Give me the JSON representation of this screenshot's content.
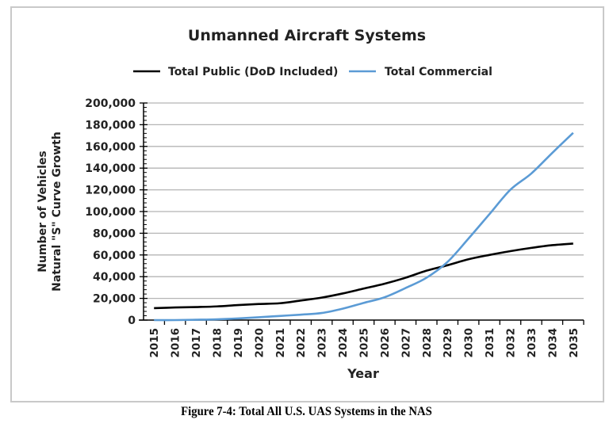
{
  "chart_data": {
    "type": "line",
    "title": "Unmanned Aircraft Systems",
    "xlabel": "Year",
    "ylabel_lines": [
      "Number of Vehicles",
      "Natural \"S\" Curve Growth"
    ],
    "ylim": [
      0,
      200000
    ],
    "yticks": [
      0,
      20000,
      40000,
      60000,
      80000,
      100000,
      120000,
      140000,
      160000,
      180000,
      200000
    ],
    "ytick_labels": [
      "0",
      "20,000",
      "40,000",
      "60,000",
      "80,000",
      "100,000",
      "120,000",
      "140,000",
      "160,000",
      "180,000",
      "200,000"
    ],
    "grid": true,
    "legend_position": "top",
    "categories": [
      "2015",
      "2016",
      "2017",
      "2018",
      "2019",
      "2020",
      "2021",
      "2022",
      "2023",
      "2024",
      "2025",
      "2026",
      "2027",
      "2028",
      "2029",
      "2030",
      "2031",
      "2032",
      "2033",
      "2034",
      "2035"
    ],
    "series": [
      {
        "name": "Total Public (DoD Included)",
        "color": "#000000",
        "values": [
          11000,
          11600,
          12000,
          12600,
          13800,
          14800,
          15500,
          18000,
          20700,
          24500,
          29000,
          33500,
          39000,
          45500,
          50500,
          56000,
          60000,
          63500,
          66500,
          69000,
          70500
        ]
      },
      {
        "name": "Total Commercial",
        "color": "#5b9bd5",
        "values": [
          0,
          0,
          300,
          700,
          1500,
          2600,
          3800,
          5000,
          6500,
          10500,
          15800,
          21000,
          29500,
          39000,
          53500,
          75000,
          97500,
          120000,
          135000,
          154000,
          172500
        ]
      }
    ]
  },
  "caption": "Figure 7-4: Total All U.S. UAS Systems in the NAS"
}
